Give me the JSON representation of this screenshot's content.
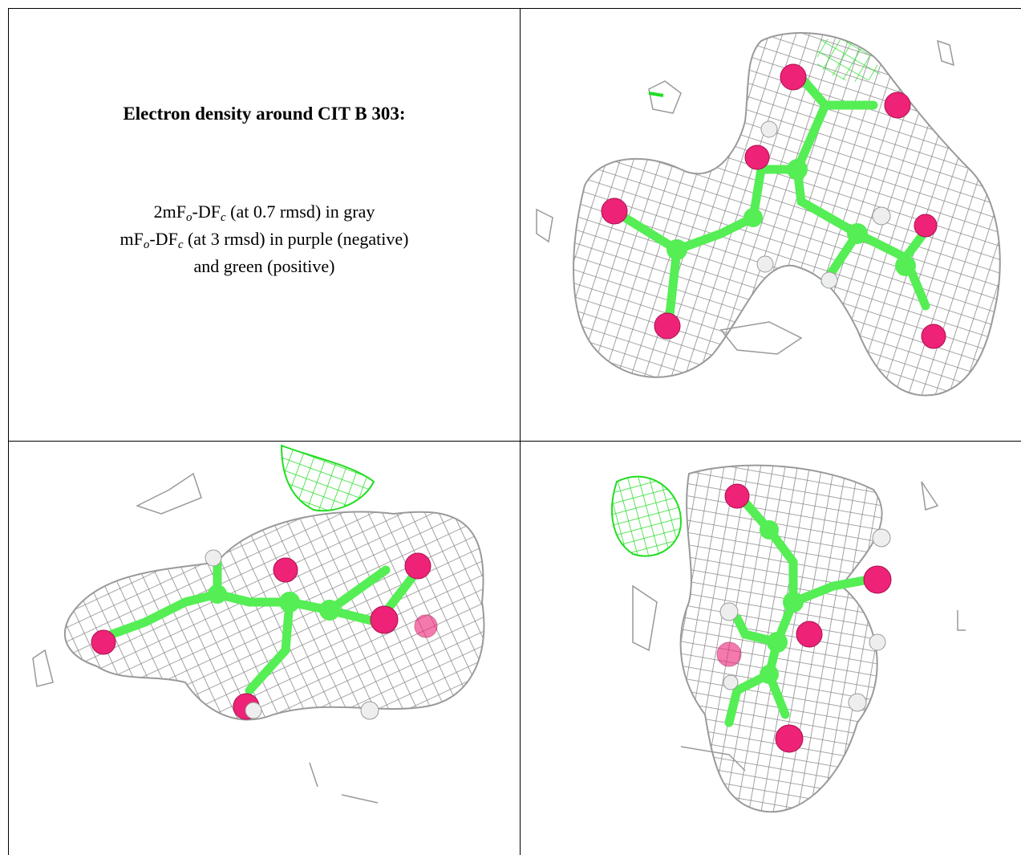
{
  "title": "Electron density around CIT B 303:",
  "legend": [
    [
      "2mF",
      "o",
      "-DF",
      "c",
      " (at 0.7 rmsd) in gray"
    ],
    [
      "mF",
      "o",
      "-DF",
      "c",
      " (at 3 rmsd) in purple (negative)"
    ],
    [
      "and green (positive)"
    ]
  ]
}
